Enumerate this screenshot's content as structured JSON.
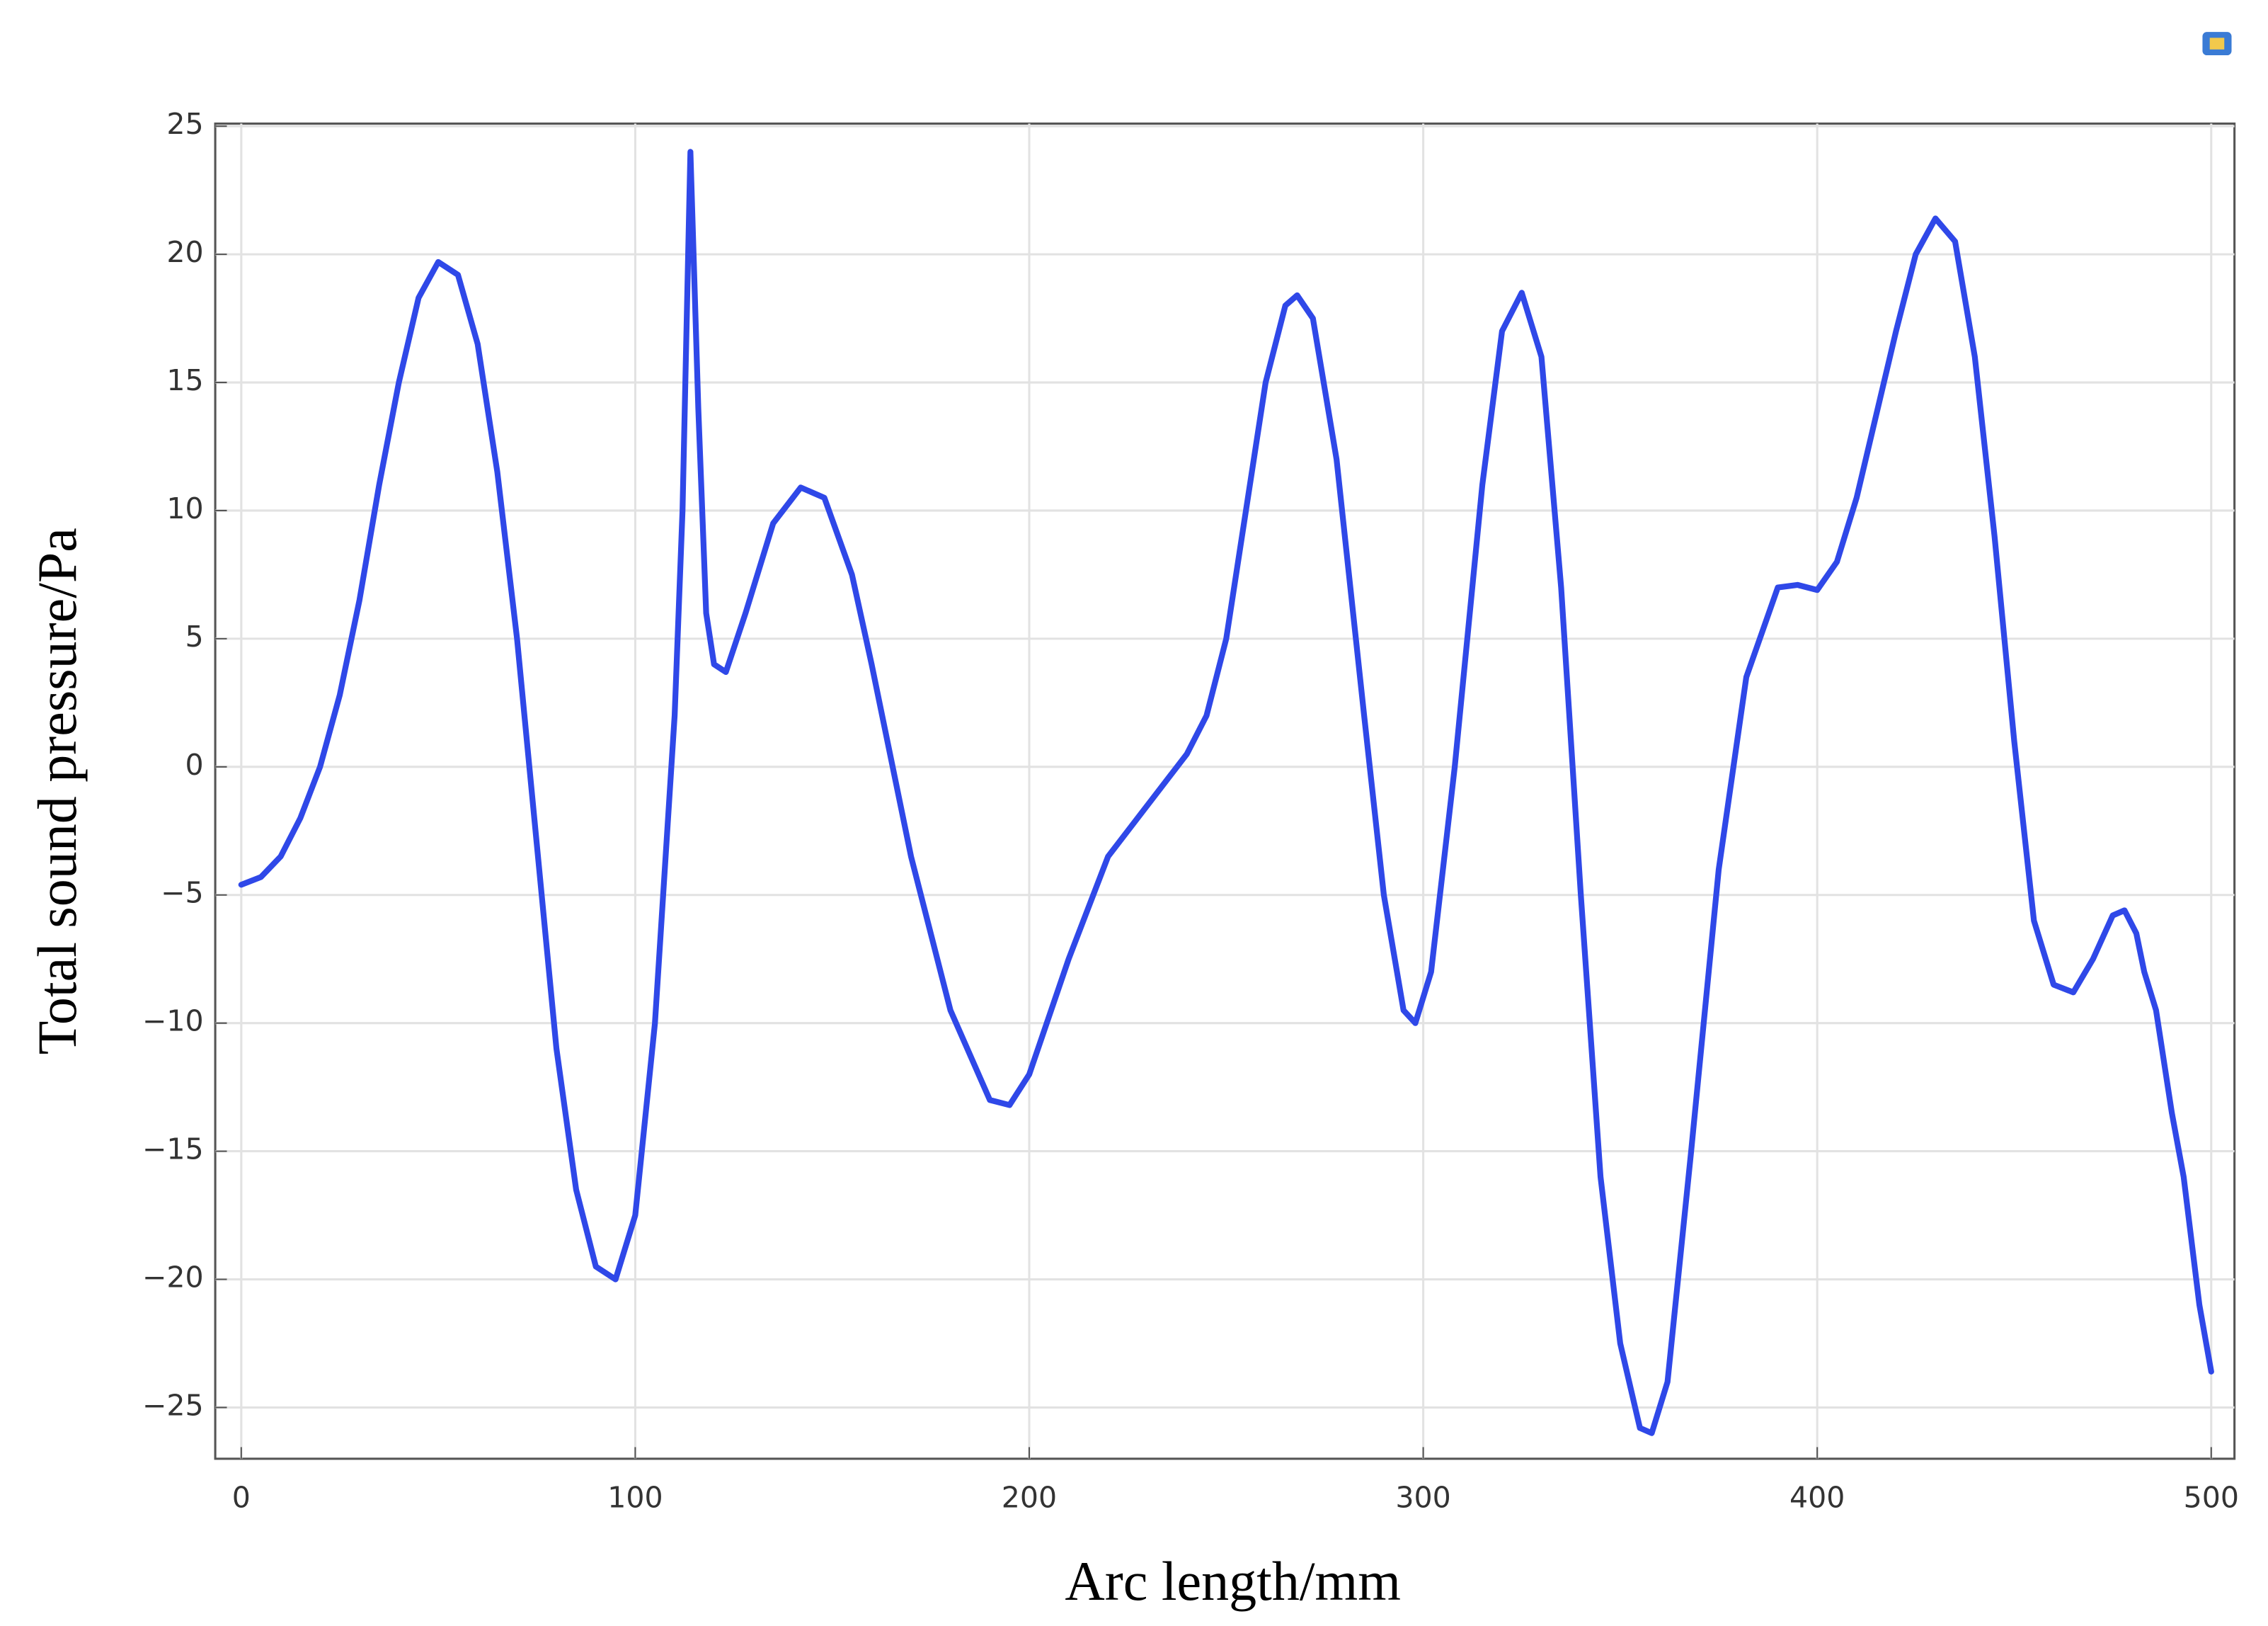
{
  "chart_data": {
    "type": "line",
    "x_label": "Arc length/mm",
    "y_label": "Total sound pressure/Pa",
    "grid": true,
    "xlim": [
      -6.6,
      505.9
    ],
    "ylim": [
      -27,
      25.1
    ],
    "xticks": [
      0,
      100,
      200,
      300,
      400,
      500
    ],
    "yticks": [
      {
        "value": -25,
        "label": "−25"
      },
      {
        "value": -20,
        "label": "−20"
      },
      {
        "value": -15,
        "label": "−15"
      },
      {
        "value": -10,
        "label": "−10"
      },
      {
        "value": -5,
        "label": "−5"
      },
      0,
      5,
      10,
      15,
      20,
      25
    ],
    "series": [
      {
        "color": "#2f48e8",
        "x": [
          0,
          5,
          10,
          15,
          20,
          25,
          30,
          35,
          40,
          45,
          50,
          55,
          60,
          65,
          70,
          75,
          80,
          85,
          90,
          95,
          100,
          105,
          110,
          112,
          114,
          116,
          118,
          120,
          123,
          128,
          135,
          142,
          148,
          155,
          160,
          170,
          180,
          190,
          195,
          200,
          210,
          220,
          230,
          240,
          245,
          250,
          255,
          260,
          265,
          268,
          272,
          278,
          285,
          290,
          295,
          298,
          302,
          308,
          315,
          320,
          325,
          330,
          335,
          340,
          345,
          350,
          355,
          358,
          362,
          368,
          375,
          382,
          390,
          395,
          400,
          405,
          410,
          420,
          425,
          430,
          435,
          440,
          445,
          450,
          455,
          460,
          465,
          470,
          475,
          478,
          481,
          483,
          486,
          490,
          493,
          497,
          500
        ],
        "values": [
          -4.6,
          -4.3,
          -3.5,
          -2,
          0,
          2.8,
          6.5,
          11,
          15,
          18.3,
          19.7,
          19.2,
          16.5,
          11.5,
          5,
          -3,
          -11,
          -16.5,
          -19.5,
          -20,
          -17.5,
          -10,
          2,
          10,
          24,
          14,
          6,
          4,
          3.7,
          6,
          9.5,
          10.9,
          10.5,
          7.5,
          4,
          -3.5,
          -9.5,
          -13,
          -13.2,
          -12,
          -7.5,
          -3.5,
          -1.5,
          0.5,
          2,
          5,
          10,
          15,
          18,
          18.4,
          17.5,
          12,
          2,
          -5,
          -9.5,
          -10,
          -8,
          0,
          11,
          17,
          18.5,
          16,
          7,
          -5,
          -16,
          -22.5,
          -25.8,
          -26,
          -24,
          -15,
          -4,
          3.5,
          7,
          7.1,
          6.9,
          8,
          10.5,
          17,
          20,
          21.4,
          20.5,
          16,
          9,
          1,
          -6,
          -8.5,
          -8.8,
          -7.5,
          -5.8,
          -5.6,
          -6.5,
          -8,
          -9.5,
          -13.5,
          -16,
          -21,
          -23.6
        ]
      }
    ]
  }
}
